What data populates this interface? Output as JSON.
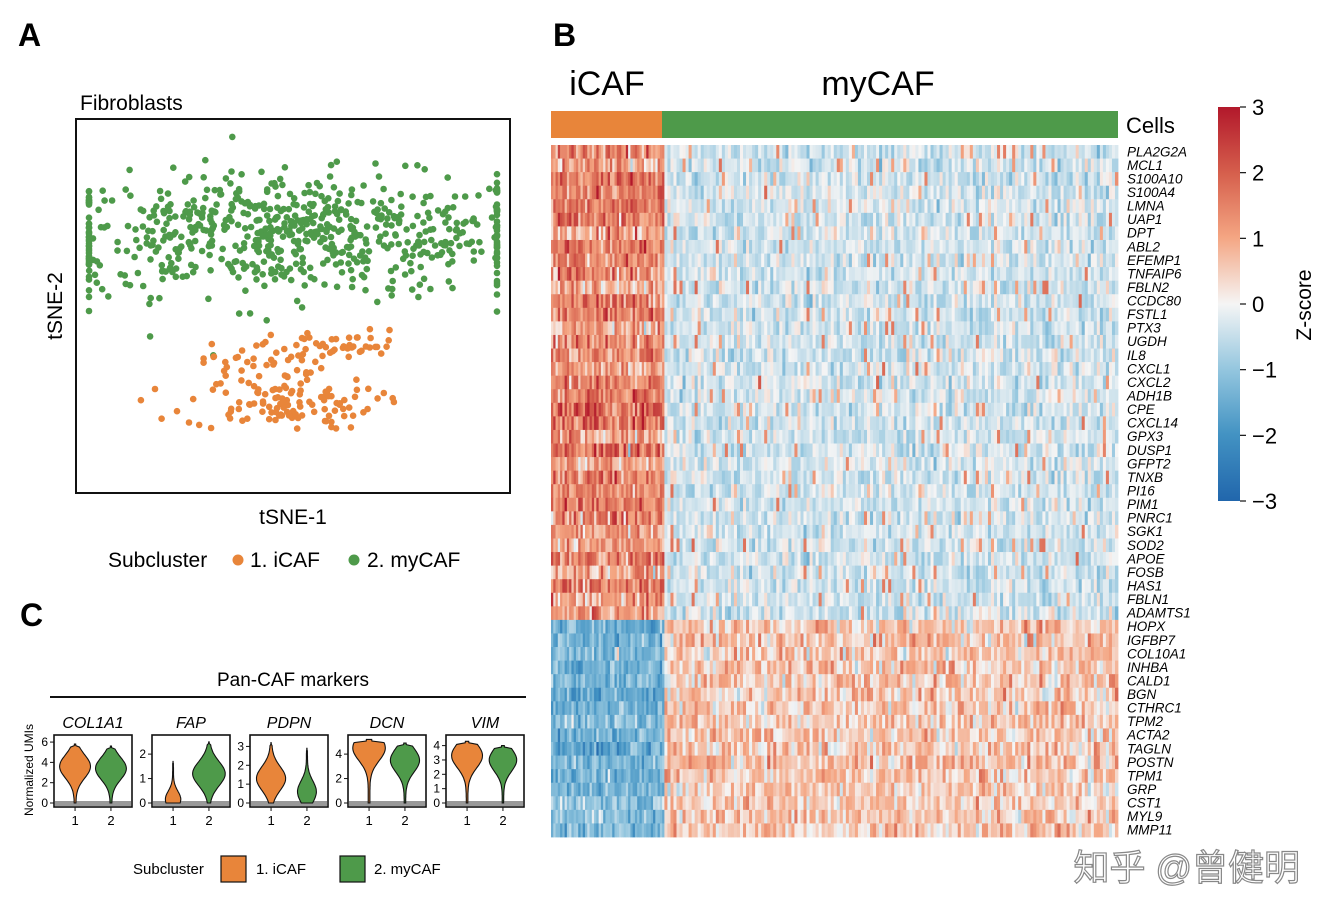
{
  "colors": {
    "icaf": "#E8853A",
    "mycaf": "#4E9A4A",
    "bar_gray": "#999999",
    "heat_low": "#2E6CB0",
    "heat_mid": "#F5F5F5",
    "heat_high": "#B2182B"
  },
  "panel_labels": {
    "a": "A",
    "b": "B",
    "c": "C"
  },
  "chart_data": [
    {
      "type": "scatter",
      "panel": "A",
      "title": "Fibroblasts",
      "xlabel": "tSNE-1",
      "ylabel": "tSNE-2",
      "legend": {
        "title": "Subcluster",
        "items": [
          "1. iCAF",
          "2. myCAF"
        ]
      },
      "series": [
        {
          "name": "1. iCAF",
          "clusters": [
            {
              "cx": 0.47,
              "cy": -0.52,
              "sx": 0.11,
              "sy": 0.07,
              "n": 110
            },
            {
              "cx": 0.43,
              "cy": -0.3,
              "sx": 0.07,
              "sy": 0.05,
              "n": 40
            },
            {
              "cx": 0.61,
              "cy": -0.21,
              "sx": 0.08,
              "sy": 0.04,
              "n": 40
            }
          ]
        },
        {
          "name": "2. myCAF",
          "clusters": [
            {
              "cx": 0.5,
              "cy": 0.38,
              "sx": 0.32,
              "sy": 0.16,
              "n": 680
            }
          ]
        }
      ]
    },
    {
      "type": "heatmap",
      "panel": "B",
      "groups": [
        {
          "name": "iCAF",
          "fraction": 0.2
        },
        {
          "name": "myCAF",
          "fraction": 0.8
        }
      ],
      "annotation_label": "Cells",
      "genes_up_icaf": [
        "PLA2G2A",
        "MCL1",
        "S100A10",
        "S100A4",
        "LMNA",
        "UAP1",
        "DPT",
        "ABL2",
        "EFEMP1",
        "TNFAIP6",
        "FBLN2",
        "CCDC80",
        "FSTL1",
        "PTX3",
        "UGDH",
        "IL8",
        "CXCL1",
        "CXCL2",
        "ADH1B",
        "CPE",
        "CXCL14",
        "GPX3",
        "DUSP1",
        "GFPT2",
        "TNXB",
        "PI16",
        "PIM1",
        "PNRC1",
        "SGK1",
        "SOD2",
        "APOE",
        "FOSB",
        "HAS1",
        "FBLN1",
        "ADAMTS1"
      ],
      "genes_up_mycaf": [
        "HOPX",
        "IGFBP7",
        "COL10A1",
        "INHBA",
        "CALD1",
        "BGN",
        "CTHRC1",
        "TPM2",
        "ACTA2",
        "TAGLN",
        "POSTN",
        "TPM1",
        "GRP",
        "CST1",
        "MYL9",
        "MMP11"
      ],
      "colorbar": {
        "label": "Z-score",
        "range": [
          -3,
          3
        ],
        "ticks": [
          "3",
          "2",
          "1",
          "0",
          "−1",
          "−2",
          "−3"
        ]
      }
    },
    {
      "type": "violin",
      "panel": "C",
      "title": "Pan-CAF markers",
      "ylabel": "Normalized UMIs",
      "x_categories": [
        "1",
        "2"
      ],
      "legend": {
        "title": "Subcluster",
        "items": [
          "1. iCAF",
          "2. myCAF"
        ]
      },
      "markers": [
        {
          "gene": "COL1A1",
          "ymax": 6.5,
          "yticks": [
            "6",
            "4",
            "2",
            "0"
          ],
          "tickvals": [
            6,
            4,
            2,
            0
          ],
          "icaf": {
            "peak": 3.6,
            "top": 5.8,
            "width": 0.9
          },
          "mycaf": {
            "peak": 3.4,
            "top": 5.6,
            "width": 0.9
          }
        },
        {
          "gene": "FAP",
          "ymax": 2.7,
          "yticks": [
            "2",
            "1",
            "0"
          ],
          "tickvals": [
            2,
            1,
            0
          ],
          "icaf": {
            "peak": 0.15,
            "top": 1.7,
            "width": 0.45
          },
          "mycaf": {
            "peak": 1.2,
            "top": 2.5,
            "width": 0.95
          }
        },
        {
          "gene": "PDPN",
          "ymax": 3.5,
          "yticks": [
            "3",
            "2",
            "1",
            "0"
          ],
          "tickvals": [
            3,
            2,
            1,
            0
          ],
          "icaf": {
            "peak": 1.3,
            "top": 3.2,
            "width": 0.85
          },
          "mycaf": {
            "peak": 0.6,
            "top": 2.9,
            "width": 0.55
          }
        },
        {
          "gene": "DCN",
          "ymax": 5.4,
          "yticks": [
            "4",
            "2",
            "0"
          ],
          "tickvals": [
            4,
            2,
            0
          ],
          "icaf": {
            "peak": 4.5,
            "top": 5.2,
            "width": 0.95
          },
          "mycaf": {
            "peak": 3.5,
            "top": 4.9,
            "width": 0.85
          }
        },
        {
          "gene": "VIM",
          "ymax": 4.6,
          "yticks": [
            "4",
            "3",
            "2",
            "1",
            "0"
          ],
          "tickvals": [
            4,
            3,
            2,
            1,
            0
          ],
          "icaf": {
            "peak": 3.3,
            "top": 4.3,
            "width": 0.9
          },
          "mycaf": {
            "peak": 3.0,
            "top": 4.0,
            "width": 0.8
          }
        }
      ]
    }
  ],
  "watermark": "知乎 @曾健明"
}
